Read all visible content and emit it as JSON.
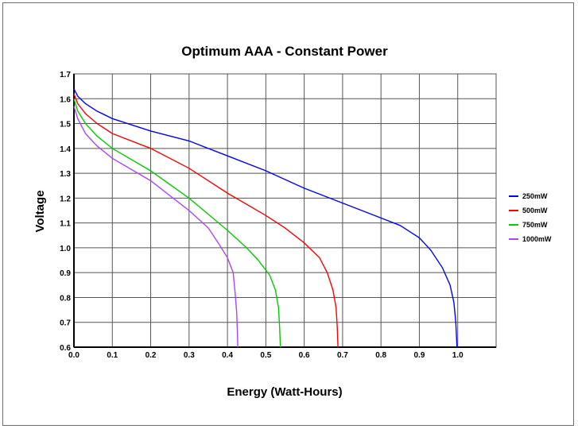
{
  "chart_data": {
    "type": "line",
    "title": "Optimum AAA - Constant Power",
    "xlabel": "Energy (Watt-Hours)",
    "ylabel": "Voltage",
    "xlim": [
      0.0,
      1.1
    ],
    "ylim": [
      0.6,
      1.7
    ],
    "xticks": [
      "0.0",
      "0.1",
      "0.2",
      "0.3",
      "0.4",
      "0.5",
      "0.6",
      "0.7",
      "0.8",
      "0.9",
      "1.0"
    ],
    "yticks": [
      "0.6",
      "0.7",
      "0.8",
      "0.9",
      "1.0",
      "1.1",
      "1.2",
      "1.3",
      "1.4",
      "1.5",
      "1.6",
      "1.7"
    ],
    "grid": true,
    "legend_position": "right",
    "series": [
      {
        "name": "250mW",
        "color": "#0000ff",
        "points": [
          [
            0.0,
            1.64
          ],
          [
            0.01,
            1.61
          ],
          [
            0.03,
            1.58
          ],
          [
            0.06,
            1.55
          ],
          [
            0.1,
            1.52
          ],
          [
            0.2,
            1.47
          ],
          [
            0.3,
            1.43
          ],
          [
            0.4,
            1.37
          ],
          [
            0.5,
            1.31
          ],
          [
            0.6,
            1.24
          ],
          [
            0.7,
            1.18
          ],
          [
            0.8,
            1.12
          ],
          [
            0.85,
            1.09
          ],
          [
            0.9,
            1.04
          ],
          [
            0.93,
            0.99
          ],
          [
            0.96,
            0.92
          ],
          [
            0.98,
            0.85
          ],
          [
            0.99,
            0.78
          ],
          [
            0.995,
            0.7
          ],
          [
            0.998,
            0.6
          ]
        ]
      },
      {
        "name": "500mW",
        "color": "#ff0000",
        "points": [
          [
            0.0,
            1.62
          ],
          [
            0.01,
            1.58
          ],
          [
            0.03,
            1.54
          ],
          [
            0.06,
            1.5
          ],
          [
            0.1,
            1.46
          ],
          [
            0.2,
            1.4
          ],
          [
            0.3,
            1.32
          ],
          [
            0.4,
            1.22
          ],
          [
            0.5,
            1.13
          ],
          [
            0.55,
            1.08
          ],
          [
            0.6,
            1.02
          ],
          [
            0.64,
            0.96
          ],
          [
            0.66,
            0.9
          ],
          [
            0.675,
            0.83
          ],
          [
            0.683,
            0.76
          ],
          [
            0.686,
            0.68
          ],
          [
            0.688,
            0.6
          ]
        ]
      },
      {
        "name": "750mW",
        "color": "#00cc00",
        "points": [
          [
            0.0,
            1.6
          ],
          [
            0.01,
            1.55
          ],
          [
            0.03,
            1.5
          ],
          [
            0.06,
            1.45
          ],
          [
            0.1,
            1.4
          ],
          [
            0.2,
            1.31
          ],
          [
            0.3,
            1.2
          ],
          [
            0.4,
            1.07
          ],
          [
            0.45,
            1.0
          ],
          [
            0.48,
            0.95
          ],
          [
            0.51,
            0.89
          ],
          [
            0.525,
            0.83
          ],
          [
            0.533,
            0.76
          ],
          [
            0.536,
            0.68
          ],
          [
            0.538,
            0.6
          ]
        ]
      },
      {
        "name": "1000mW",
        "color": "#aa44ff",
        "points": [
          [
            0.0,
            1.57
          ],
          [
            0.01,
            1.52
          ],
          [
            0.03,
            1.46
          ],
          [
            0.06,
            1.41
          ],
          [
            0.1,
            1.36
          ],
          [
            0.2,
            1.27
          ],
          [
            0.3,
            1.15
          ],
          [
            0.35,
            1.08
          ],
          [
            0.38,
            1.01
          ],
          [
            0.4,
            0.96
          ],
          [
            0.415,
            0.9
          ],
          [
            0.42,
            0.82
          ],
          [
            0.424,
            0.74
          ],
          [
            0.426,
            0.66
          ],
          [
            0.427,
            0.6
          ]
        ]
      }
    ]
  }
}
